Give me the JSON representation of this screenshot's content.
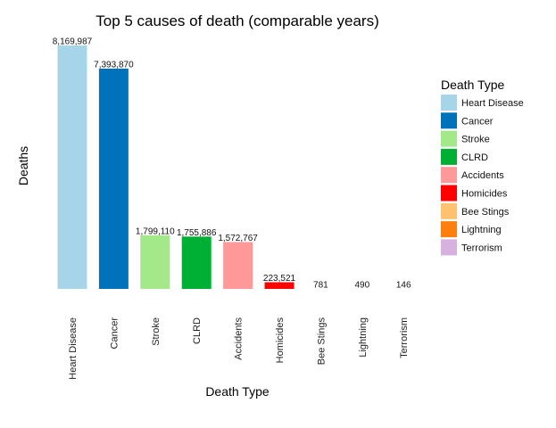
{
  "chart_data": {
    "type": "bar",
    "title": "Top 5 causes of death (comparable years)",
    "xlabel": "Death Type",
    "ylabel": "Deaths",
    "ylim": [
      0,
      8169987
    ],
    "grid": false,
    "legend_title": "Death Type",
    "legend_position": "right",
    "categories": [
      "Heart Disease",
      "Cancer",
      "Stroke",
      "CLRD",
      "Accidents",
      "Homicides",
      "Bee Stings",
      "Lightning",
      "Terrorism"
    ],
    "values": [
      8169987,
      7393870,
      1799110,
      1755886,
      1572767,
      223521,
      781,
      490,
      146
    ],
    "value_labels": [
      "8,169,987",
      "7,393,870",
      "1,799,110",
      "1,755,886",
      "1,572,767",
      "223,521",
      "781",
      "490",
      "146"
    ],
    "colors": [
      "#A6D5EA",
      "#0072BC",
      "#A3E98A",
      "#00B035",
      "#FF9999",
      "#FF0000",
      "#FFC26E",
      "#FF7F0E",
      "#D8B2DE"
    ]
  }
}
